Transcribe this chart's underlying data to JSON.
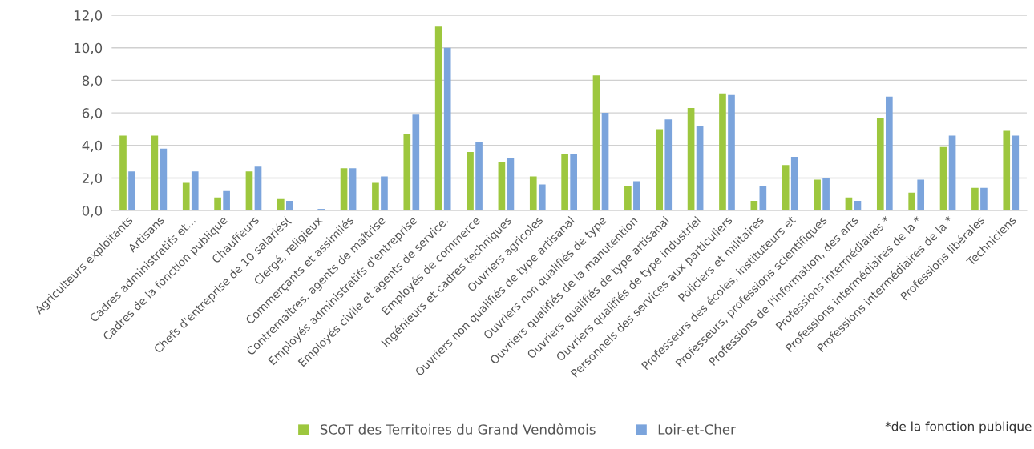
{
  "chart_data": {
    "type": "bar",
    "categories": [
      "Agriculteurs exploitants",
      "Artisans",
      "Cadres administratifs et...",
      "Cadres de la fonction publique",
      "Chauffeurs",
      "Chefs d'entreprise de 10 salariés(",
      "Clergé, religieux",
      "Commerçants et assimilés",
      "Contremaîtres, agents de maîtrise",
      "Employés administratifs d'entreprise",
      "Employés civile et agents de service.",
      "Employés de commerce",
      "Ingénieurs et cadres techniques",
      "Ouvriers agricoles",
      "Ouvriers non qualifiés de type artisanal",
      "Ouvriers non qualifiés de type",
      "Ouvriers qualifiés de la manutention",
      "Ouvriers qualifiés de type artisanal",
      "Ouvriers qualifiés de type industriel",
      "Personnels des services aux particuliers",
      "Policiers et militaires",
      "Professeurs des écoles, instituteurs et",
      "Professeurs, professions scientifiques",
      "Professions de l'information, des arts",
      "Professions intermédiaires *",
      "Professions intermédiaires de la *",
      "Professions intermédiaires de la *",
      "Professions libérales",
      "Techniciens"
    ],
    "series": [
      {
        "name": "SCoT des Territoires du Grand Vendômois",
        "color": "#9dc73e",
        "values": [
          4.6,
          4.6,
          1.7,
          0.8,
          2.4,
          0.7,
          0.0,
          2.6,
          1.7,
          4.7,
          11.3,
          3.6,
          3.0,
          2.1,
          3.5,
          8.3,
          1.5,
          5.0,
          6.3,
          7.2,
          0.6,
          2.8,
          1.9,
          0.8,
          5.7,
          1.1,
          3.9,
          1.4,
          4.9
        ]
      },
      {
        "name": "Loir-et-Cher",
        "color": "#7ba4dc",
        "values": [
          2.4,
          3.8,
          2.4,
          1.2,
          2.7,
          0.6,
          0.1,
          2.6,
          2.1,
          5.9,
          10.0,
          4.2,
          3.2,
          1.6,
          3.5,
          6.0,
          1.8,
          5.6,
          5.2,
          7.1,
          1.5,
          3.3,
          2.0,
          0.6,
          7.0,
          1.9,
          4.6,
          1.4,
          4.6
        ]
      }
    ],
    "ylim": [
      0,
      12
    ],
    "yticks": [
      {
        "value": 0,
        "label": "0,0"
      },
      {
        "value": 2,
        "label": "2,0"
      },
      {
        "value": 4,
        "label": "4,0"
      },
      {
        "value": 6,
        "label": "6,0"
      },
      {
        "value": 8,
        "label": "8,0"
      },
      {
        "value": 10,
        "label": "10,0"
      },
      {
        "value": 12,
        "label": "12,0"
      }
    ],
    "grid": "y",
    "legend": "bottom",
    "annotations": [
      "*de la fonction publique"
    ]
  }
}
